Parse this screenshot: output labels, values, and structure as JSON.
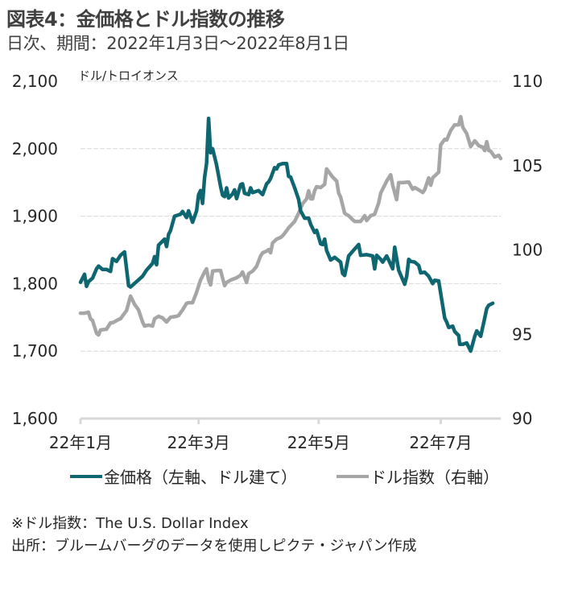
{
  "header": {
    "title": "図表4：金価格とドル指数の推移",
    "subtitle": "日次、期間：2022年1月3日～2022年8月1日"
  },
  "colors": {
    "gold": "#0e6670",
    "dollar": "#a6a6a6",
    "grid": "#d9d9d9",
    "text": "#262626"
  },
  "footer": {
    "note": "※ドル指数：The U.S. Dollar Index",
    "source": "出所：ブルームバーグのデータを使用しピクテ・ジャパン作成"
  },
  "chart_data": {
    "type": "line",
    "title": "図表4：金価格とドル指数の推移",
    "subtitle": "日次、期間：2022年1月3日～2022年8月1日",
    "x_unit": "days since 2022-01-03",
    "xlim": [
      0,
      210
    ],
    "x_ticks": [
      {
        "day": 0,
        "label": "22年1月"
      },
      {
        "day": 59,
        "label": "22年3月"
      },
      {
        "day": 119,
        "label": "22年5月"
      },
      {
        "day": 180,
        "label": "22年7月"
      }
    ],
    "y_left": {
      "label": "ドル/トロイオンス",
      "ylim": [
        1600,
        2100
      ],
      "ticks": [
        1600,
        1700,
        1800,
        1900,
        2000,
        2100
      ],
      "tick_labels": [
        "1,600",
        "1,700",
        "1,800",
        "1,900",
        "2,000",
        "2,100"
      ]
    },
    "y_right": {
      "label": "",
      "ylim": [
        90,
        110
      ],
      "ticks": [
        90,
        95,
        100,
        105,
        110
      ],
      "tick_labels": [
        "90",
        "95",
        "100",
        "105",
        "110"
      ]
    },
    "grid": true,
    "legend_position": "bottom",
    "series": [
      {
        "name": "金価格（左軸、ドル建て）",
        "axis": "left",
        "x": [
          0,
          2,
          3,
          4,
          6,
          8,
          9,
          11,
          13,
          15,
          16,
          18,
          20,
          22,
          24,
          25,
          28,
          31,
          33,
          36,
          37,
          38,
          39,
          42,
          43,
          44,
          45,
          47,
          50,
          51,
          53,
          54,
          56,
          58,
          59,
          60,
          61,
          62,
          63,
          64,
          65,
          66,
          68,
          70,
          71,
          72,
          73,
          74,
          76,
          77,
          78,
          80,
          81,
          82,
          84,
          85,
          86,
          88,
          89,
          91,
          93,
          94,
          95,
          97,
          98,
          99,
          101,
          103,
          104,
          105,
          107,
          109,
          110,
          112,
          114,
          115,
          117,
          118,
          120,
          121,
          122,
          123,
          125,
          127,
          130,
          131,
          132,
          134,
          136,
          139,
          140,
          143,
          146,
          147,
          148,
          150,
          151,
          153,
          154,
          156,
          157,
          159,
          162,
          163,
          164,
          165,
          167,
          169,
          170,
          172,
          174,
          176,
          177,
          179,
          182,
          183,
          184,
          186,
          187,
          189,
          189.5,
          191,
          193,
          195,
          197,
          198,
          200,
          202,
          203,
          204,
          206
        ],
        "y": [
          1802,
          1814,
          1796,
          1803,
          1808,
          1822,
          1826,
          1821,
          1821,
          1818,
          1837,
          1833,
          1842,
          1847,
          1797,
          1795,
          1803,
          1811,
          1820,
          1830,
          1840,
          1828,
          1857,
          1866,
          1855,
          1873,
          1879,
          1900,
          1903,
          1907,
          1898,
          1908,
          1891,
          1908,
          1932,
          1938,
          1919,
          1957,
          1978,
          2045,
          1994,
          2000,
          1976,
          1944,
          1931,
          1929,
          1942,
          1927,
          1933,
          1939,
          1926,
          1947,
          1948,
          1934,
          1932,
          1942,
          1935,
          1937,
          1938,
          1932,
          1948,
          1951,
          1956,
          1972,
          1970,
          1976,
          1978,
          1978,
          1959,
          1958,
          1942,
          1925,
          1908,
          1897,
          1897,
          1888,
          1876,
          1879,
          1859,
          1858,
          1866,
          1849,
          1835,
          1839,
          1832,
          1815,
          1812,
          1841,
          1848,
          1858,
          1842,
          1843,
          1841,
          1822,
          1842,
          1836,
          1832,
          1841,
          1835,
          1822,
          1854,
          1820,
          1799,
          1811,
          1836,
          1833,
          1832,
          1827,
          1816,
          1817,
          1811,
          1800,
          1805,
          1804,
          1749,
          1743,
          1735,
          1737,
          1729,
          1723,
          1710,
          1710,
          1712,
          1700,
          1722,
          1730,
          1722,
          1749,
          1763,
          1768,
          1771
        ]
      },
      {
        "name": "ドル指数（右軸）",
        "axis": "right",
        "x": [
          0,
          2,
          4,
          5,
          6,
          8,
          9,
          10,
          13,
          15,
          16,
          19,
          20,
          22,
          23,
          25,
          27,
          29,
          31,
          32,
          34,
          36,
          37,
          39,
          41,
          43,
          44,
          45,
          48,
          49,
          51,
          53,
          54,
          56,
          58,
          60,
          62,
          63,
          64,
          65,
          66,
          68,
          70,
          72,
          73,
          75,
          78,
          80,
          81,
          83,
          84,
          86,
          88,
          90,
          91,
          93,
          94,
          95,
          96,
          98,
          100,
          101,
          102,
          104,
          107,
          109,
          111,
          113,
          114,
          115,
          116,
          117,
          118,
          120,
          122,
          123,
          126,
          128,
          129,
          130,
          132,
          134,
          136,
          137,
          139,
          140,
          142,
          143,
          145,
          147,
          149,
          150,
          153,
          155,
          156,
          158,
          159,
          161,
          164,
          166,
          167,
          169,
          171,
          172,
          174,
          175,
          176,
          179,
          180,
          182,
          183,
          185,
          187,
          189,
          190,
          191,
          193,
          195,
          197,
          199,
          201,
          202,
          203,
          204,
          205,
          207,
          209,
          210
        ],
        "y": [
          96.25,
          96.25,
          96.3,
          95.92,
          95.82,
          95.06,
          94.96,
          95.25,
          95.3,
          95.68,
          95.68,
          95.87,
          95.92,
          96.25,
          96.4,
          97.26,
          96.78,
          96.44,
          95.73,
          95.49,
          95.54,
          95.49,
          95.92,
          96.06,
          95.97,
          95.73,
          95.87,
          96.01,
          96.06,
          96.11,
          96.44,
          96.83,
          96.87,
          96.87,
          97.49,
          98.21,
          98.69,
          98.88,
          98.21,
          97.92,
          98.74,
          98.78,
          98.78,
          97.88,
          98.07,
          98.21,
          98.35,
          98.5,
          98.69,
          98.07,
          98.59,
          98.74,
          99.02,
          99.64,
          99.83,
          99.93,
          100.02,
          99.83,
          100.41,
          100.64,
          100.74,
          100.84,
          100.98,
          101.31,
          101.69,
          102.17,
          102.74,
          103.03,
          103.51,
          103.03,
          103.03,
          103.51,
          103.75,
          103.7,
          103.89,
          104.8,
          104.32,
          104.08,
          103.37,
          103.13,
          102.17,
          102.03,
          101.79,
          101.69,
          101.69,
          101.69,
          102.03,
          101.74,
          102.03,
          102.12,
          102.79,
          103.37,
          104.08,
          104.46,
          103.84,
          102.98,
          103.99,
          103.99,
          104.03,
          103.6,
          103.7,
          103.56,
          103.41,
          103.56,
          104.27,
          103.84,
          104.27,
          104.61,
          106.23,
          106.56,
          106.52,
          107.09,
          107.42,
          107.42,
          107.9,
          107.28,
          106.9,
          106.13,
          106.47,
          106.18,
          106.09,
          105.89,
          106.42,
          105.89,
          105.85,
          105.51,
          105.61,
          105.42
        ]
      }
    ]
  }
}
